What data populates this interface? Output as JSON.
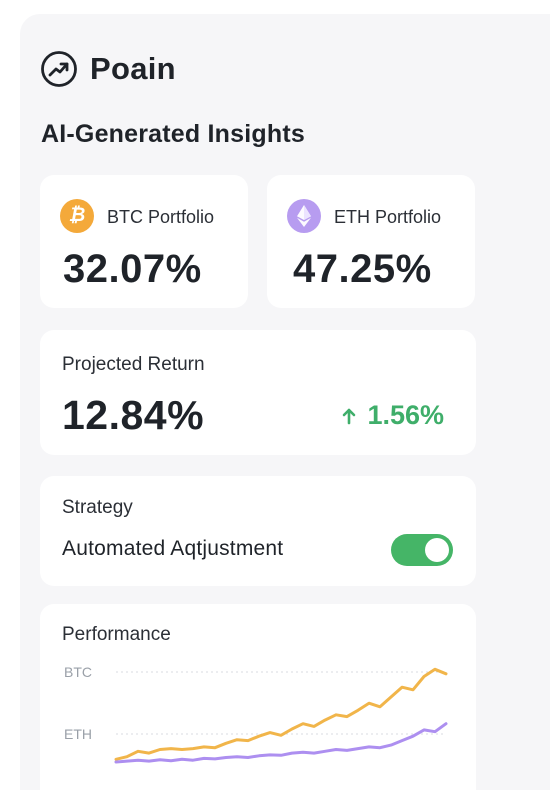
{
  "app": {
    "name": "Poain",
    "icon": "trending-up-icon"
  },
  "section_title": "AI-Generated Insights",
  "portfolios": {
    "btc": {
      "label": "BTC Portfolio",
      "value": "32.07%",
      "icon": "bitcoin-icon",
      "icon_glyph": "₿",
      "color": "#f4a93a"
    },
    "eth": {
      "label": "ETH Portfolio",
      "value": "47.25%",
      "icon": "ethereum-icon",
      "color": "#b79cf0"
    }
  },
  "projected": {
    "label": "Projected Return",
    "value": "12.84%",
    "change": "1.56%",
    "change_direction": "up",
    "change_color": "#3fae6a"
  },
  "strategy": {
    "label": "Strategy",
    "value": "Automated Aqtjustment",
    "toggle_on": true
  },
  "performance": {
    "label": "Performance",
    "chart_data": {
      "type": "line",
      "title": "Performance",
      "y_tick_labels": [
        "BTC",
        "ETH"
      ],
      "grid": true,
      "series": [
        {
          "name": "BTC",
          "color": "#f1b54a",
          "values": [
            0.3,
            0.6,
            1.2,
            1.0,
            1.4,
            1.5,
            1.4,
            1.5,
            1.7,
            1.6,
            2.1,
            2.5,
            2.4,
            2.9,
            3.3,
            3.0,
            3.7,
            4.3,
            4.0,
            4.7,
            5.3,
            5.1,
            5.8,
            6.6,
            6.2,
            7.3,
            8.4,
            8.1,
            9.6,
            10.4,
            9.9
          ]
        },
        {
          "name": "ETH",
          "color": "#ad8ff0",
          "values": [
            0.0,
            0.1,
            0.2,
            0.1,
            0.25,
            0.15,
            0.3,
            0.2,
            0.4,
            0.35,
            0.5,
            0.6,
            0.5,
            0.7,
            0.8,
            0.75,
            1.0,
            1.1,
            1.0,
            1.2,
            1.4,
            1.3,
            1.5,
            1.7,
            1.6,
            1.9,
            2.4,
            2.9,
            3.6,
            3.4,
            4.3
          ]
        }
      ],
      "ylim": [
        0,
        11
      ]
    }
  }
}
